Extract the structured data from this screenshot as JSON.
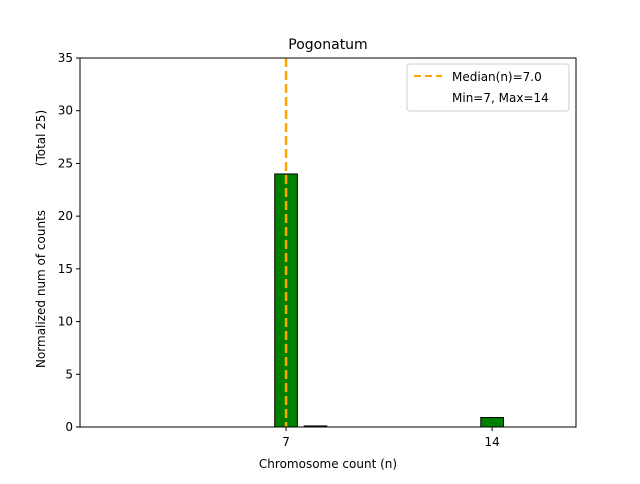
{
  "chart_data": {
    "type": "bar",
    "title": "Pogonatum",
    "xlabel": "Chromosome count (n)",
    "ylabel": "Normalized num of counts",
    "ylabel_note": "(Total 25)",
    "x": [
      7,
      8,
      14
    ],
    "values": [
      24,
      0.1,
      0.9
    ],
    "xlim": [
      0,
      16.85
    ],
    "ylim": [
      0,
      35
    ],
    "xticks": [
      7,
      14
    ],
    "yticks": [
      0,
      5,
      10,
      15,
      20,
      25,
      30,
      35
    ],
    "bar_color": "#008000",
    "median_line": {
      "x": 7.0,
      "color": "#FFA500"
    },
    "legend": {
      "placement": "top-right",
      "entries": [
        "Median(n)=7.0",
        "Min=7, Max=14"
      ]
    },
    "grid": false
  }
}
